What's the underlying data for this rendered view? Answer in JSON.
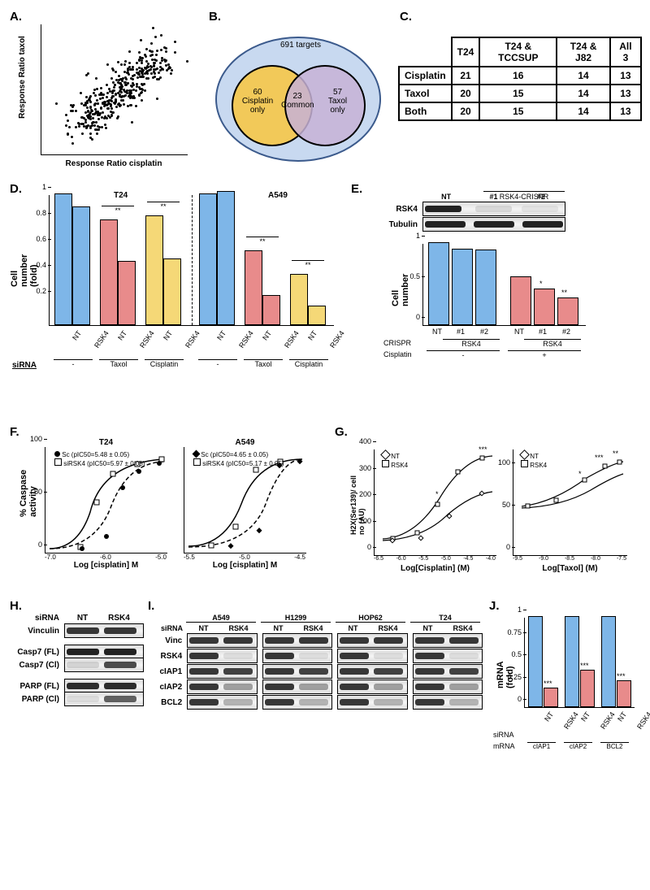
{
  "panelA": {
    "label": "A.",
    "xlabel": "Response Ratio cisplatin",
    "ylabel": "Response Ratio taxol",
    "scatter": {
      "n": 400,
      "xrange": [
        0,
        1.2
      ],
      "yrange": [
        0,
        1.3
      ]
    }
  },
  "panelB": {
    "label": "B.",
    "outer_label": "691 targets",
    "left_label": "60\nCisplatin\nonly",
    "center_label": "23\nCommon",
    "right_label": "57\nTaxol\nonly",
    "colors": {
      "outer": "#c8d9f0",
      "left": "#f6c648",
      "right": "#c7b2d6"
    }
  },
  "panelC": {
    "label": "C.",
    "headers": [
      "",
      "T24",
      "T24 & TCCSUP",
      "T24 & J82",
      "All 3"
    ],
    "rows": [
      [
        "Cisplatin",
        21,
        16,
        14,
        13
      ],
      [
        "Taxol",
        20,
        15,
        14,
        13
      ],
      [
        "Both",
        20,
        15,
        14,
        13
      ]
    ]
  },
  "panelD": {
    "label": "D.",
    "ylabel": "Cell number (fold)",
    "titles": [
      "T24",
      "A549"
    ],
    "yticks": [
      0.2,
      0.4,
      0.6,
      0.8,
      1
    ],
    "colors": {
      "ctrl": "#7eb6e8",
      "taxol": "#e88b8b",
      "cisplatin": "#f5d877"
    },
    "bars": [
      {
        "v": 1.0,
        "c": "ctrl",
        "x": "NT"
      },
      {
        "v": 0.9,
        "c": "ctrl",
        "x": "RSK4"
      },
      {
        "v": 0.8,
        "c": "taxol",
        "x": "NT"
      },
      {
        "v": 0.48,
        "c": "taxol",
        "x": "RSK4"
      },
      {
        "v": 0.83,
        "c": "cisplatin",
        "x": "NT"
      },
      {
        "v": 0.5,
        "c": "cisplatin",
        "x": "RSK4"
      },
      {
        "v": 1.0,
        "c": "ctrl",
        "x": "NT"
      },
      {
        "v": 1.02,
        "c": "ctrl",
        "x": "RSK4"
      },
      {
        "v": 0.56,
        "c": "taxol",
        "x": "NT"
      },
      {
        "v": 0.22,
        "c": "taxol",
        "x": "RSK4"
      },
      {
        "v": 0.38,
        "c": "cisplatin",
        "x": "NT"
      },
      {
        "v": 0.14,
        "c": "cisplatin",
        "x": "RSK4"
      }
    ],
    "groups": [
      "-",
      "Taxol",
      "Cisplatin",
      "-",
      "Taxol",
      "Cisplatin"
    ],
    "sirna_label": "siRNA",
    "sig": "**"
  },
  "panelE": {
    "label": "E.",
    "crispr_label": "RSK4-CRISPR",
    "lanes": [
      "NT",
      "#1",
      "#2"
    ],
    "blot_labels": [
      "RSK4",
      "Tubulin"
    ],
    "ylabel": "Cell number",
    "yticks": [
      0,
      0.5,
      1
    ],
    "colors": {
      "neg": "#7eb6e8",
      "pos": "#e88b8b"
    },
    "bars": [
      {
        "v": 1.0,
        "c": "neg"
      },
      {
        "v": 0.92,
        "c": "neg"
      },
      {
        "v": 0.91,
        "c": "neg"
      },
      {
        "v": 0.58,
        "c": "pos"
      },
      {
        "v": 0.43,
        "c": "pos"
      },
      {
        "v": 0.32,
        "c": "pos"
      }
    ],
    "xlabels": [
      "NT",
      "#1",
      "#2",
      "NT",
      "#1",
      "#2"
    ],
    "bottom_labels": {
      "CRISPR": "CRISPR",
      "RSK4": "RSK4",
      "Cisplatin": "Cisplatin",
      "neg": "-",
      "pos": "+"
    }
  },
  "panelF": {
    "label": "F.",
    "ylabel": "% Caspase activity",
    "xlabel": "Log [cisplatin] M",
    "titles": [
      "T24",
      "A549"
    ],
    "legend_t24": [
      "Sc (pIC50=5.48 ± 0.05)",
      "siRSK4 (pIC50=5.97 ± 0.05)"
    ],
    "legend_a549": [
      "Sc (pIC50=4.65 ± 0.05)",
      "siRSK4 (pIC50=5.17 ± 0.05)"
    ],
    "xticks_t24": [
      "-7.0",
      "-6.0",
      "-5.0"
    ],
    "xticks_a549": [
      "-5.5",
      "-5.0",
      "-4.5"
    ],
    "yticks": [
      0,
      50,
      100
    ]
  },
  "panelG": {
    "label": "G.",
    "ylabel": "H2X(Ser139)/ cell no (AU)",
    "xlabel1": "Log[Cisplatin] (M)",
    "xlabel2": "Log[Taxol] (M)",
    "legend": [
      "NT",
      "RSK4"
    ],
    "xticks1": [
      "-6.5",
      "-6.0",
      "-5.5",
      "-5.0",
      "-4.5",
      "-4.0"
    ],
    "xticks2": [
      "-9.5",
      "-9.0",
      "-8.5",
      "-8.0",
      "-7.5"
    ],
    "yticks1": [
      0,
      100,
      200,
      300,
      400
    ],
    "yticks2": [
      0,
      50,
      100
    ]
  },
  "panelH": {
    "label": "H.",
    "sirna": "siRNA",
    "lanes": [
      "NT",
      "RSK4"
    ],
    "rows": [
      "Vinculin",
      "Casp7 (FL)",
      "Casp7 (Cl)",
      "PARP (FL)",
      "PARP (Cl)"
    ]
  },
  "panelI": {
    "label": "I.",
    "cells": [
      "A549",
      "H1299",
      "HOP62",
      "T24"
    ],
    "sirna": "siRNA",
    "lanes": [
      "NT",
      "RSK4"
    ],
    "rows": [
      "Vinc",
      "RSK4",
      "cIAP1",
      "cIAP2",
      "BCL2"
    ]
  },
  "panelJ": {
    "label": "J.",
    "ylabel": "mRNA (fold)",
    "yticks": [
      0,
      0.25,
      0.5,
      0.75,
      1
    ],
    "colors": {
      "nt": "#7eb6e8",
      "rsk4": "#e88b8b"
    },
    "bars": [
      {
        "v": 1.0,
        "c": "nt"
      },
      {
        "v": 0.2,
        "c": "rsk4"
      },
      {
        "v": 1.0,
        "c": "nt"
      },
      {
        "v": 0.4,
        "c": "rsk4"
      },
      {
        "v": 1.0,
        "c": "nt"
      },
      {
        "v": 0.28,
        "c": "rsk4"
      }
    ],
    "xlabels": [
      "NT",
      "RSK4",
      "NT",
      "RSK4",
      "NT",
      "RSK4"
    ],
    "mrna": [
      "cIAP1",
      "cIAP2",
      "BCL2"
    ],
    "sirna_label": "siRNA",
    "mrna_label": "mRNA",
    "sig": "***"
  }
}
